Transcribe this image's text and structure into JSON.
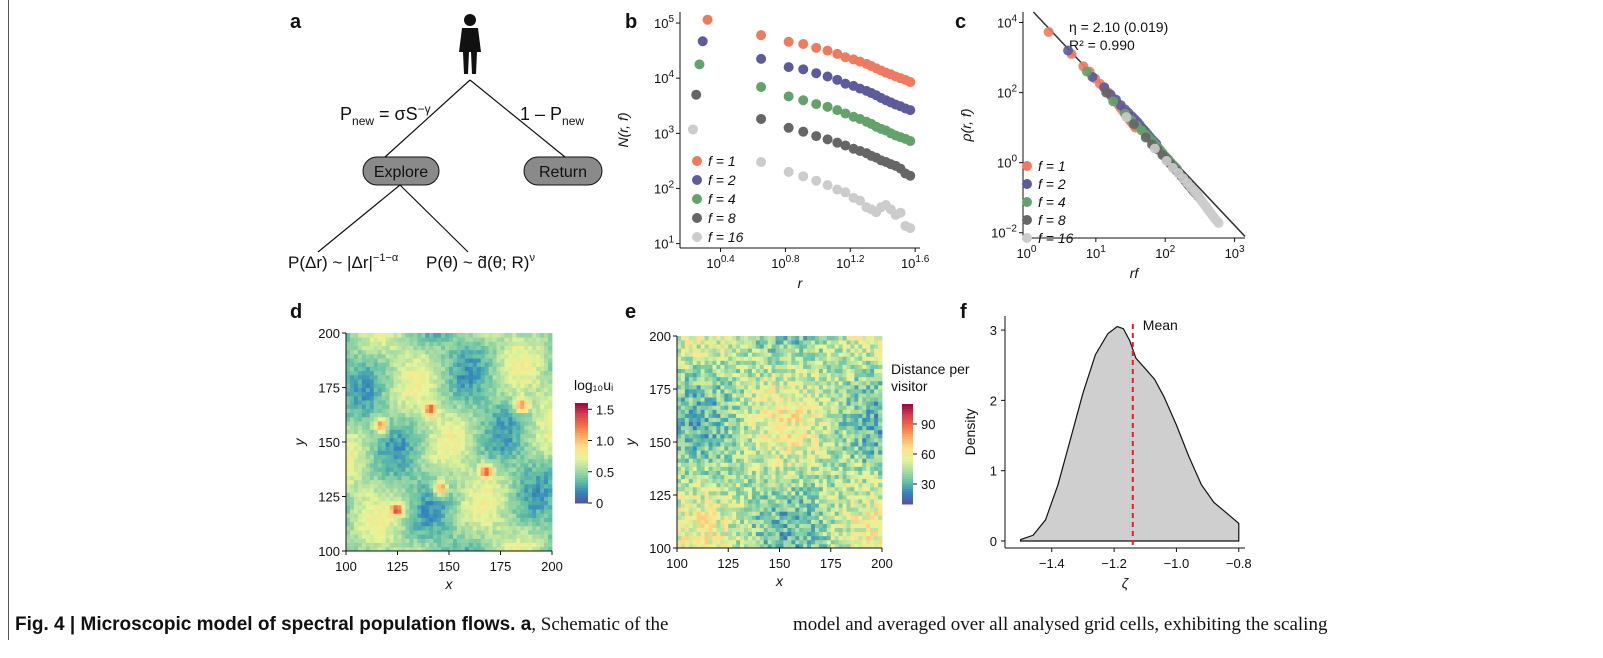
{
  "panels": {
    "a": {
      "label": "a",
      "left_edge": "P",
      "left_edge_sub": "new",
      "left_edge_rhs": " = σS",
      "left_edge_exp": "−γ",
      "right_edge": "1 – P",
      "right_edge_sub": "new",
      "node_explore": "Explore",
      "node_return": "Return",
      "bottom_left": "P(Δr) ~ |Δr|",
      "bottom_left_exp": "−1−α",
      "bottom_right": "P(θ) ~ d̃(θ; R)",
      "bottom_right_exp": "ν"
    },
    "b": {
      "label": "b"
    },
    "c": {
      "label": "c",
      "eta": "η = 2.10 (0.019)",
      "r2": "R² = 0.990"
    },
    "d": {
      "label": "d",
      "colorbar_title": "log₁₀uᵢ",
      "colorbar_ticks": [
        "1.5",
        "1.0",
        "0.5",
        "0"
      ]
    },
    "e": {
      "label": "e",
      "colorbar_title_1": "Distance per",
      "colorbar_title_2": "visitor",
      "colorbar_ticks": [
        "90",
        "60",
        "30"
      ]
    },
    "f": {
      "label": "f",
      "mean_label": "Mean"
    }
  },
  "colors": {
    "f1": "#ee7a5f",
    "f2": "#5d5b9c",
    "f4": "#63a36b",
    "f8": "#666666",
    "f16": "#cccccc",
    "mean_line": "#e3211c"
  },
  "chart_data": [
    {
      "panel": "b",
      "type": "scatter",
      "xlabel": "r",
      "ylabel": "N(r, f)",
      "log_x": true,
      "log_y": true,
      "xlim": [
        0.15,
        1.63
      ],
      "ylim": [
        0.92,
        5.2
      ],
      "x_ticks": [
        "10^0.4",
        "10^0.8",
        "10^1.2",
        "10^1.6"
      ],
      "y_ticks": [
        "10^1",
        "10^2",
        "10^3",
        "10^4",
        "10^5"
      ],
      "legend": [
        "f = 1",
        "f = 2",
        "f = 4",
        "f = 8",
        "f = 16"
      ],
      "legend_position": "bottom-left",
      "series": [
        {
          "name": "f = 1",
          "x": [
            0.32,
            0.65,
            0.82,
            0.91,
            0.99,
            1.06,
            1.12,
            1.17,
            1.22,
            1.26,
            1.3,
            1.33,
            1.36,
            1.39,
            1.42,
            1.45,
            1.48,
            1.51,
            1.54,
            1.57
          ],
          "y": [
            5.06,
            4.78,
            4.66,
            4.62,
            4.55,
            4.5,
            4.44,
            4.38,
            4.34,
            4.3,
            4.26,
            4.22,
            4.18,
            4.14,
            4.1,
            4.07,
            4.03,
            4.0,
            3.97,
            3.93
          ]
        },
        {
          "name": "f = 2",
          "x": [
            0.29,
            0.65,
            0.82,
            0.91,
            0.99,
            1.06,
            1.12,
            1.17,
            1.22,
            1.26,
            1.3,
            1.33,
            1.36,
            1.39,
            1.42,
            1.45,
            1.48,
            1.51,
            1.54,
            1.57
          ],
          "y": [
            4.67,
            4.35,
            4.2,
            4.16,
            4.09,
            4.03,
            3.97,
            3.9,
            3.86,
            3.81,
            3.77,
            3.73,
            3.69,
            3.64,
            3.6,
            3.56,
            3.52,
            3.49,
            3.45,
            3.42
          ]
        },
        {
          "name": "f = 4",
          "x": [
            0.27,
            0.65,
            0.82,
            0.91,
            0.99,
            1.06,
            1.12,
            1.17,
            1.22,
            1.26,
            1.3,
            1.33,
            1.36,
            1.39,
            1.42,
            1.45,
            1.48,
            1.51,
            1.54,
            1.57
          ],
          "y": [
            4.25,
            3.84,
            3.67,
            3.6,
            3.53,
            3.48,
            3.42,
            3.36,
            3.3,
            3.26,
            3.21,
            3.17,
            3.12,
            3.08,
            3.05,
            3.0,
            2.96,
            2.93,
            2.9,
            2.86
          ]
        },
        {
          "name": "f = 8",
          "x": [
            0.25,
            0.65,
            0.82,
            0.91,
            0.99,
            1.06,
            1.12,
            1.17,
            1.22,
            1.26,
            1.3,
            1.33,
            1.36,
            1.39,
            1.42,
            1.45,
            1.48,
            1.51,
            1.54,
            1.57
          ],
          "y": [
            3.7,
            3.26,
            3.1,
            3.03,
            2.95,
            2.89,
            2.83,
            2.78,
            2.72,
            2.68,
            2.64,
            2.59,
            2.56,
            2.51,
            2.48,
            2.44,
            2.41,
            2.36,
            2.27,
            2.23
          ]
        },
        {
          "name": "f = 16",
          "x": [
            0.23,
            0.65,
            0.82,
            0.91,
            0.99,
            1.06,
            1.12,
            1.17,
            1.22,
            1.26,
            1.3,
            1.33,
            1.36,
            1.39,
            1.42,
            1.45,
            1.48,
            1.51,
            1.54,
            1.57
          ],
          "y": [
            3.07,
            2.48,
            2.3,
            2.22,
            2.14,
            2.06,
            1.98,
            1.93,
            1.83,
            1.78,
            1.66,
            1.62,
            1.57,
            1.66,
            1.7,
            1.62,
            1.52,
            1.56,
            1.32,
            1.28
          ]
        }
      ]
    },
    {
      "panel": "c",
      "type": "scatter",
      "xlabel": "rf",
      "ylabel": "ρ(r, f)",
      "log_x": true,
      "log_y": true,
      "xlim": [
        -0.05,
        3.15
      ],
      "ylim": [
        -2.15,
        4.3
      ],
      "x_ticks": [
        "10^0",
        "10^1",
        "10^2",
        "10^3"
      ],
      "y_ticks": [
        "10^-2",
        "10^0",
        "10^2",
        "10^4"
      ],
      "fit_slope": -2.1,
      "legend": [
        "f = 1",
        "f = 2",
        "f = 4",
        "f = 8",
        "f = 16"
      ],
      "legend_position": "bottom-left",
      "series": [
        {
          "name": "f = 1",
          "x": [
            0.32,
            0.65,
            0.82,
            0.91,
            0.99,
            1.06,
            1.12,
            1.17,
            1.22,
            1.26,
            1.3,
            1.33,
            1.36,
            1.39,
            1.42,
            1.45,
            1.48,
            1.51,
            1.54,
            1.57
          ],
          "y": [
            3.73,
            3.1,
            2.75,
            2.6,
            2.4,
            2.25,
            2.15,
            2.02,
            1.9,
            1.8,
            1.72,
            1.64,
            1.56,
            1.48,
            1.4,
            1.32,
            1.24,
            1.16,
            1.09,
            1.0
          ]
        },
        {
          "name": "f = 2",
          "x": [
            0.6,
            0.95,
            1.12,
            1.21,
            1.29,
            1.36,
            1.42,
            1.47,
            1.52,
            1.56,
            1.6,
            1.63,
            1.66,
            1.69,
            1.72,
            1.75,
            1.78,
            1.81,
            1.84,
            1.87
          ],
          "y": [
            3.2,
            2.45,
            2.15,
            1.95,
            1.8,
            1.64,
            1.52,
            1.42,
            1.32,
            1.24,
            1.16,
            1.08,
            1.0,
            0.94,
            0.87,
            0.8,
            0.73,
            0.66,
            0.6,
            0.54
          ]
        },
        {
          "name": "f = 4",
          "x": [
            0.87,
            1.25,
            1.42,
            1.51,
            1.59,
            1.66,
            1.72,
            1.77,
            1.82,
            1.86,
            1.9,
            1.93,
            1.96,
            1.99,
            2.02,
            2.05,
            2.08,
            2.11,
            2.14,
            2.17
          ],
          "y": [
            2.6,
            1.75,
            1.4,
            1.22,
            1.06,
            0.92,
            0.8,
            0.7,
            0.6,
            0.5,
            0.42,
            0.35,
            0.28,
            0.2,
            0.14,
            0.08,
            0.0,
            -0.06,
            -0.12,
            -0.18
          ]
        },
        {
          "name": "f = 8",
          "x": [
            1.15,
            1.55,
            1.72,
            1.81,
            1.89,
            1.96,
            2.02,
            2.07,
            2.12,
            2.16,
            2.2,
            2.23,
            2.26,
            2.29,
            2.32,
            2.35,
            2.38,
            2.41,
            2.44,
            2.47
          ],
          "y": [
            2.0,
            1.1,
            0.72,
            0.52,
            0.38,
            0.22,
            0.1,
            -0.02,
            -0.13,
            -0.22,
            -0.3,
            -0.38,
            -0.45,
            -0.52,
            -0.6,
            -0.67,
            -0.74,
            -0.82,
            -0.88,
            -0.95
          ]
        },
        {
          "name": "f = 16",
          "x": [
            1.44,
            1.85,
            2.02,
            2.11,
            2.19,
            2.26,
            2.32,
            2.37,
            2.42,
            2.46,
            2.5,
            2.53,
            2.56,
            2.59,
            2.62,
            2.65,
            2.68,
            2.71,
            2.74,
            2.77
          ],
          "y": [
            1.3,
            0.4,
            0.05,
            -0.15,
            -0.3,
            -0.45,
            -0.58,
            -0.7,
            -0.82,
            -0.92,
            -1.02,
            -1.1,
            -1.18,
            -1.26,
            -1.35,
            -1.42,
            -1.5,
            -1.58,
            -1.65,
            -1.72
          ]
        }
      ]
    },
    {
      "panel": "d",
      "type": "heatmap",
      "xlabel": "x",
      "ylabel": "y",
      "xlim": [
        100,
        200
      ],
      "ylim": [
        100,
        200
      ],
      "x_ticks": [
        "100",
        "125",
        "150",
        "175",
        "200"
      ],
      "y_ticks": [
        "100",
        "125",
        "150",
        "175",
        "200"
      ],
      "hotspots": [
        [
          125,
          119
        ],
        [
          146,
          129
        ],
        [
          168,
          137
        ],
        [
          141,
          165
        ],
        [
          185,
          167
        ],
        [
          117,
          158
        ]
      ],
      "colorbar_range": [
        0,
        1.6
      ]
    },
    {
      "panel": "e",
      "type": "heatmap",
      "xlabel": "x",
      "ylabel": "y",
      "xlim": [
        100,
        200
      ],
      "ylim": [
        100,
        200
      ],
      "x_ticks": [
        "100",
        "125",
        "150",
        "175",
        "200"
      ],
      "y_ticks": [
        "100",
        "125",
        "150",
        "175",
        "200"
      ],
      "colorbar_range": [
        10,
        110
      ]
    },
    {
      "panel": "f",
      "type": "area",
      "xlabel": "ζ",
      "ylabel": "Density",
      "xlim": [
        -1.55,
        -0.78
      ],
      "ylim": [
        -0.1,
        3.2
      ],
      "x_ticks": [
        "−1.4",
        "−1.2",
        "−1.0",
        "−0.8"
      ],
      "y_ticks": [
        "0",
        "1",
        "2",
        "3"
      ],
      "mean": -1.14,
      "x": [
        -1.5,
        -1.46,
        -1.42,
        -1.38,
        -1.34,
        -1.3,
        -1.26,
        -1.22,
        -1.19,
        -1.17,
        -1.15,
        -1.13,
        -1.1,
        -1.07,
        -1.04,
        -1.0,
        -0.96,
        -0.92,
        -0.88,
        -0.84,
        -0.8
      ],
      "y": [
        0.02,
        0.08,
        0.3,
        0.8,
        1.45,
        2.1,
        2.65,
        2.95,
        3.05,
        3.02,
        2.85,
        2.6,
        2.45,
        2.3,
        2.05,
        1.65,
        1.2,
        0.8,
        0.55,
        0.4,
        0.25
      ]
    }
  ],
  "caption": {
    "left_bold": "Fig. 4 | Microscopic model of spectral population flows. a",
    "left_rest": ", Schematic of the",
    "right": "model and averaged over all analysed grid cells, exhibiting the scaling"
  }
}
